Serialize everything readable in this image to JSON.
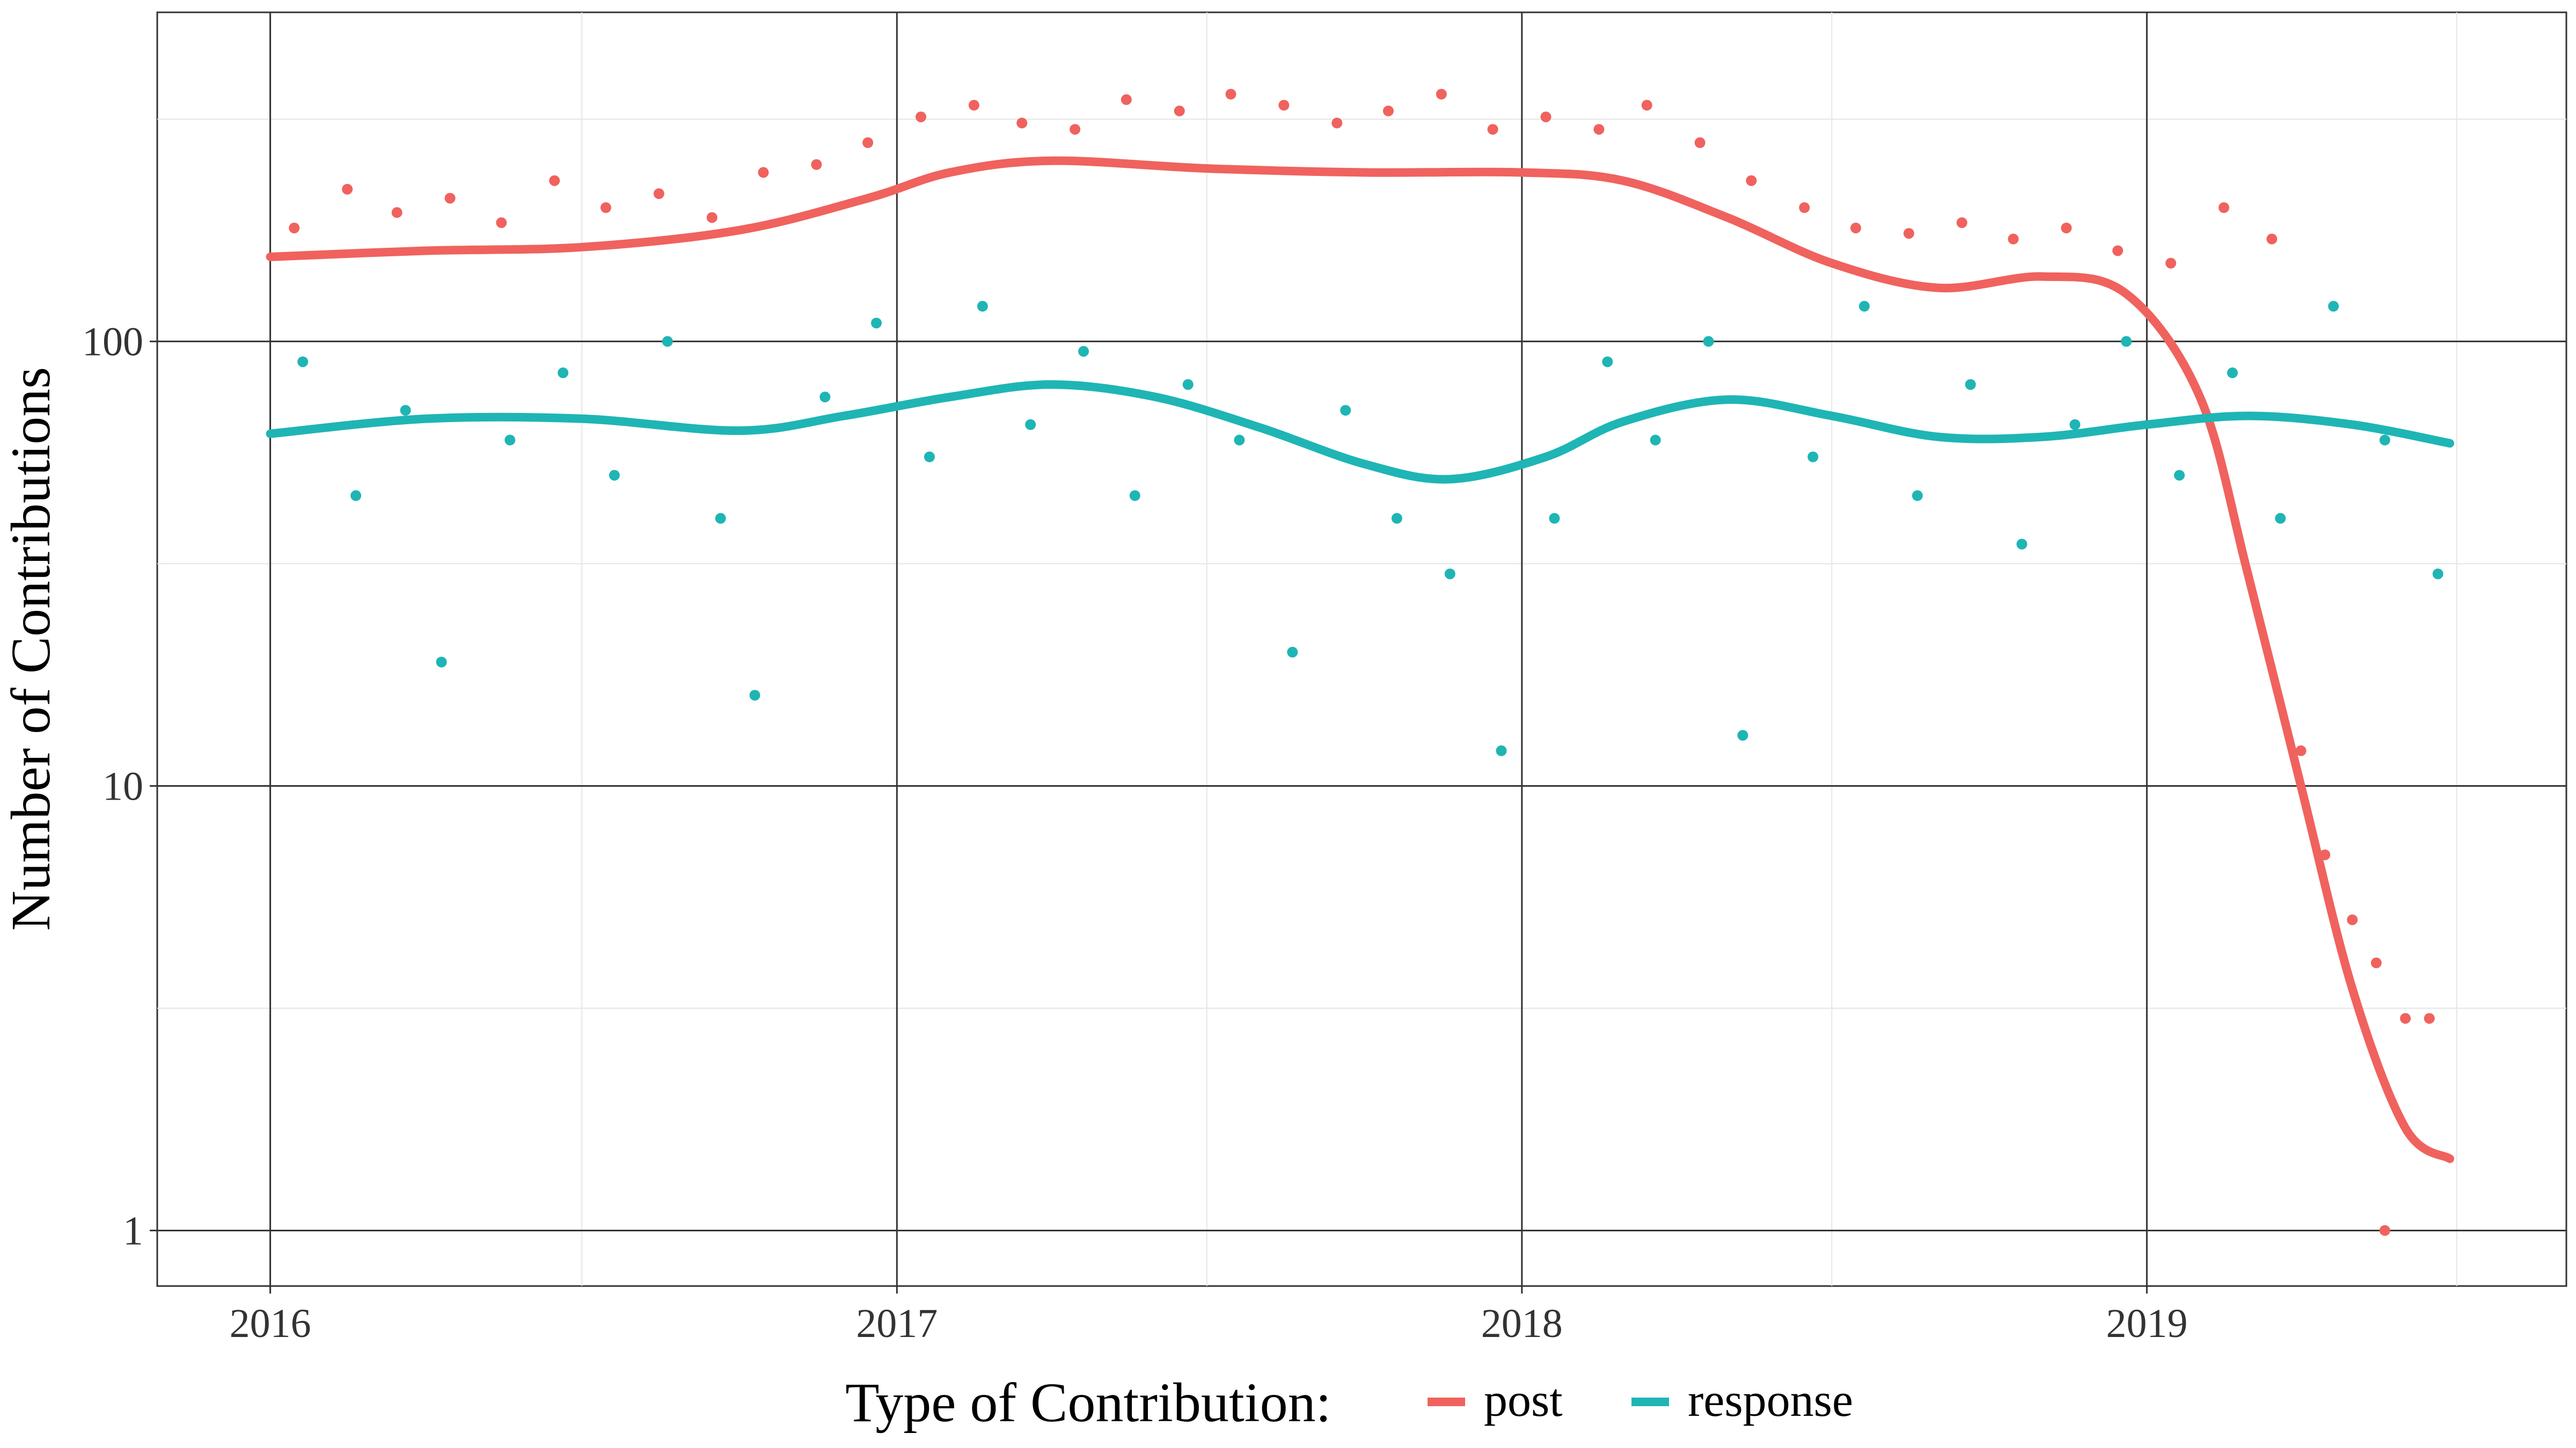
{
  "chart_data": {
    "type": "scatter",
    "title": "",
    "xlabel": "",
    "ylabel": "Number of Contributions",
    "y_scale": "log10",
    "ylim": [
      0.75,
      550
    ],
    "xlim": [
      "2015-10-27",
      "2019-09-03"
    ],
    "x_ticks": [
      "2016",
      "2017",
      "2018",
      "2019"
    ],
    "y_ticks": [
      "1",
      "10",
      "100"
    ],
    "grid": true,
    "legend": {
      "title": "Type of Contribution:",
      "placement": "bottom",
      "entries": [
        "post",
        "response"
      ]
    },
    "colors": {
      "post": "#F0625E",
      "response": "#1FB5B5"
    },
    "series": [
      {
        "name": "post",
        "color": "#F0625E",
        "smooth": [
          [
            "2016-01-01",
            155
          ],
          [
            "2016-04-01",
            160
          ],
          [
            "2016-07-01",
            163
          ],
          [
            "2016-10-01",
            178
          ],
          [
            "2016-12-15",
            210
          ],
          [
            "2017-02-01",
            240
          ],
          [
            "2017-04-01",
            255
          ],
          [
            "2017-07-01",
            245
          ],
          [
            "2017-10-01",
            240
          ],
          [
            "2018-01-01",
            240
          ],
          [
            "2018-03-01",
            230
          ],
          [
            "2018-05-01",
            190
          ],
          [
            "2018-07-01",
            150
          ],
          [
            "2018-09-01",
            132
          ],
          [
            "2018-11-01",
            140
          ],
          [
            "2018-12-20",
            128
          ],
          [
            "2019-02-01",
            75
          ],
          [
            "2019-03-01",
            30
          ],
          [
            "2019-04-01",
            10
          ],
          [
            "2019-05-01",
            3.5
          ],
          [
            "2019-06-01",
            1.7
          ],
          [
            "2019-06-27",
            1.45
          ]
        ],
        "points": [
          [
            "2016-01-15",
            180
          ],
          [
            "2016-02-15",
            220
          ],
          [
            "2016-03-15",
            195
          ],
          [
            "2016-04-15",
            210
          ],
          [
            "2016-05-15",
            185
          ],
          [
            "2016-06-15",
            230
          ],
          [
            "2016-07-15",
            200
          ],
          [
            "2016-08-15",
            215
          ],
          [
            "2016-09-15",
            190
          ],
          [
            "2016-10-15",
            240
          ],
          [
            "2016-11-15",
            250
          ],
          [
            "2016-12-15",
            280
          ],
          [
            "2017-01-15",
            320
          ],
          [
            "2017-02-15",
            340
          ],
          [
            "2017-03-15",
            310
          ],
          [
            "2017-04-15",
            300
          ],
          [
            "2017-05-15",
            350
          ],
          [
            "2017-06-15",
            330
          ],
          [
            "2017-07-15",
            360
          ],
          [
            "2017-08-15",
            340
          ],
          [
            "2017-09-15",
            310
          ],
          [
            "2017-10-15",
            330
          ],
          [
            "2017-11-15",
            360
          ],
          [
            "2017-12-15",
            300
          ],
          [
            "2018-01-15",
            320
          ],
          [
            "2018-02-15",
            300
          ],
          [
            "2018-03-15",
            340
          ],
          [
            "2018-04-15",
            280
          ],
          [
            "2018-05-15",
            230
          ],
          [
            "2018-06-15",
            200
          ],
          [
            "2018-07-15",
            180
          ],
          [
            "2018-08-15",
            175
          ],
          [
            "2018-09-15",
            185
          ],
          [
            "2018-10-15",
            170
          ],
          [
            "2018-11-15",
            180
          ],
          [
            "2018-12-15",
            160
          ],
          [
            "2019-01-15",
            150
          ],
          [
            "2019-02-15",
            200
          ],
          [
            "2019-03-15",
            170
          ],
          [
            "2019-04-01",
            12
          ],
          [
            "2019-04-15",
            7
          ],
          [
            "2019-05-01",
            5
          ],
          [
            "2019-05-15",
            4
          ],
          [
            "2019-06-01",
            3
          ],
          [
            "2019-06-15",
            3
          ],
          [
            "2019-05-20",
            1
          ]
        ]
      },
      {
        "name": "response",
        "color": "#1FB5B5",
        "smooth": [
          [
            "2016-01-01",
            62
          ],
          [
            "2016-04-01",
            67
          ],
          [
            "2016-07-01",
            67
          ],
          [
            "2016-10-01",
            63
          ],
          [
            "2016-12-01",
            68
          ],
          [
            "2017-02-01",
            75
          ],
          [
            "2017-04-01",
            80
          ],
          [
            "2017-06-01",
            75
          ],
          [
            "2017-08-01",
            64
          ],
          [
            "2017-10-01",
            53
          ],
          [
            "2017-11-20",
            49
          ],
          [
            "2018-01-15",
            55
          ],
          [
            "2018-03-01",
            66
          ],
          [
            "2018-05-01",
            74
          ],
          [
            "2018-07-01",
            68
          ],
          [
            "2018-09-01",
            61
          ],
          [
            "2018-11-01",
            61
          ],
          [
            "2019-01-01",
            65
          ],
          [
            "2019-03-01",
            68
          ],
          [
            "2019-05-01",
            65
          ],
          [
            "2019-06-27",
            59
          ]
        ],
        "points": [
          [
            "2016-01-20",
            90
          ],
          [
            "2016-02-20",
            45
          ],
          [
            "2016-03-20",
            70
          ],
          [
            "2016-04-10",
            19
          ],
          [
            "2016-05-20",
            60
          ],
          [
            "2016-06-20",
            85
          ],
          [
            "2016-07-20",
            50
          ],
          [
            "2016-08-20",
            100
          ],
          [
            "2016-09-20",
            40
          ],
          [
            "2016-10-10",
            16
          ],
          [
            "2016-11-20",
            75
          ],
          [
            "2016-12-20",
            110
          ],
          [
            "2017-01-20",
            55
          ],
          [
            "2017-02-20",
            120
          ],
          [
            "2017-03-20",
            65
          ],
          [
            "2017-04-20",
            95
          ],
          [
            "2017-05-20",
            45
          ],
          [
            "2017-06-20",
            80
          ],
          [
            "2017-07-20",
            60
          ],
          [
            "2017-08-20",
            20
          ],
          [
            "2017-09-20",
            70
          ],
          [
            "2017-10-20",
            40
          ],
          [
            "2017-11-20",
            30
          ],
          [
            "2017-12-20",
            12
          ],
          [
            "2018-01-20",
            40
          ],
          [
            "2018-02-20",
            90
          ],
          [
            "2018-03-20",
            60
          ],
          [
            "2018-04-20",
            100
          ],
          [
            "2018-05-10",
            13
          ],
          [
            "2018-06-20",
            55
          ],
          [
            "2018-07-20",
            120
          ],
          [
            "2018-08-20",
            45
          ],
          [
            "2018-09-20",
            80
          ],
          [
            "2018-10-20",
            35
          ],
          [
            "2018-11-20",
            65
          ],
          [
            "2018-12-20",
            100
          ],
          [
            "2019-01-20",
            50
          ],
          [
            "2019-02-20",
            85
          ],
          [
            "2019-03-20",
            40
          ],
          [
            "2019-04-20",
            120
          ],
          [
            "2019-05-20",
            60
          ],
          [
            "2019-06-20",
            30
          ]
        ]
      }
    ]
  }
}
